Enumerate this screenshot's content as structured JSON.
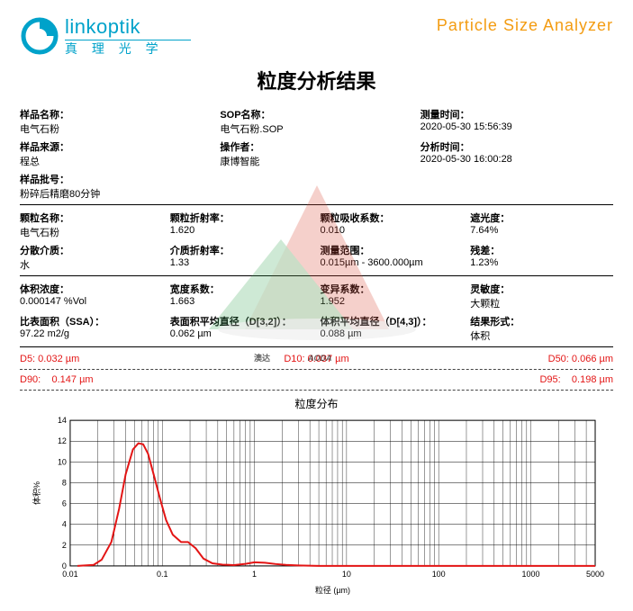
{
  "header": {
    "logo_en": "linkoptik",
    "logo_cn": "真 理 光 学",
    "product": "Particle  Size  Analyzer"
  },
  "title": "粒度分析结果",
  "b1": {
    "r1": [
      {
        "l": "样品名称：",
        "v": "电气石粉"
      },
      {
        "l": "SOP名称：",
        "v": "电气石粉.SOP"
      },
      {
        "l": "测量时间：",
        "v": "2020-05-30 15:56:39"
      }
    ],
    "r2": [
      {
        "l": "样品来源：",
        "v": "程总"
      },
      {
        "l": "操作者：",
        "v": "康博智能"
      },
      {
        "l": "分析时间：",
        "v": "2020-05-30 16:00:28"
      }
    ],
    "r3": {
      "l": "样品批号：",
      "v": "粉碎后精磨80分钟"
    }
  },
  "b2": {
    "r1": [
      {
        "l": "颗粒名称：",
        "v": "电气石粉"
      },
      {
        "l": "颗粒折射率：",
        "v": "1.620"
      },
      {
        "l": "颗粒吸收系数：",
        "v": "0.010"
      },
      {
        "l": "遮光度：",
        "v": "7.64%"
      }
    ],
    "r2": [
      {
        "l": "分散介质：",
        "v": "水"
      },
      {
        "l": "介质折射率：",
        "v": "1.33"
      },
      {
        "l": "测量范围：",
        "v": "0.015µm - 3600.000µm"
      },
      {
        "l": "残差：",
        "v": "1.23%"
      }
    ]
  },
  "b3": {
    "r1": [
      {
        "l": "体积浓度：",
        "v": "0.000147      %Vol"
      },
      {
        "l": "宽度系数：",
        "v": "1.663"
      },
      {
        "l": "变异系数：",
        "v": "1.952"
      },
      {
        "l": "灵敏度：",
        "v": "大颗粒"
      }
    ],
    "r2": [
      {
        "l": "比表面积（SSA）：",
        "v": "97.22            m2/g"
      },
      {
        "l": "表面积平均直径（D[3,2]）：",
        "v": "0.062        µm"
      },
      {
        "l": "体积平均直径（D[4,3]）：",
        "v": "0.088        µm"
      },
      {
        "l": "结果形式：",
        "v": "体积"
      }
    ]
  },
  "dvals": {
    "d5": "D5: 0.032  µm",
    "d10": "D10: 0.037  µm",
    "d50": "D50: 0.066  µm",
    "d90l": "D90:",
    "d90v": "0.147  µm",
    "d95l": "D95:",
    "d95v": "0.198  µm"
  },
  "chart": {
    "type": "line",
    "title": "粒度分布",
    "xlabel": "粒径 (µm)",
    "ylabel": "体积%",
    "xscale": "log",
    "xlim": [
      0.01,
      5000
    ],
    "ylim": [
      0,
      14
    ],
    "ytick_step": 2,
    "xticks": [
      0.01,
      0.1,
      1,
      10,
      100,
      1000,
      5000
    ],
    "series_color": "#e31515",
    "line_width": 2,
    "background_color": "#ffffff",
    "grid_color": "#000000",
    "border_color": "#000000",
    "label_fontsize": 10,
    "points": [
      [
        0.012,
        0
      ],
      [
        0.018,
        0.1
      ],
      [
        0.022,
        0.6
      ],
      [
        0.028,
        2.3
      ],
      [
        0.034,
        5.5
      ],
      [
        0.04,
        8.8
      ],
      [
        0.048,
        11.2
      ],
      [
        0.055,
        11.8
      ],
      [
        0.062,
        11.7
      ],
      [
        0.07,
        10.8
      ],
      [
        0.08,
        8.9
      ],
      [
        0.095,
        6.4
      ],
      [
        0.11,
        4.4
      ],
      [
        0.13,
        3.0
      ],
      [
        0.16,
        2.3
      ],
      [
        0.19,
        2.3
      ],
      [
        0.23,
        1.7
      ],
      [
        0.28,
        0.7
      ],
      [
        0.35,
        0.25
      ],
      [
        0.45,
        0.12
      ],
      [
        0.6,
        0.08
      ],
      [
        0.8,
        0.2
      ],
      [
        1.0,
        0.35
      ],
      [
        1.3,
        0.3
      ],
      [
        1.7,
        0.18
      ],
      [
        2.2,
        0.1
      ],
      [
        3,
        0.05
      ],
      [
        5,
        0
      ],
      [
        10,
        0
      ],
      [
        100,
        0
      ],
      [
        1000,
        0
      ],
      [
        5000,
        0
      ]
    ]
  },
  "colors": {
    "brand": "#00a2ca",
    "accent_orange": "#f39c12",
    "red": "#e31515",
    "wm_green": "#39a23b",
    "wm_red": "#d94b3a"
  }
}
